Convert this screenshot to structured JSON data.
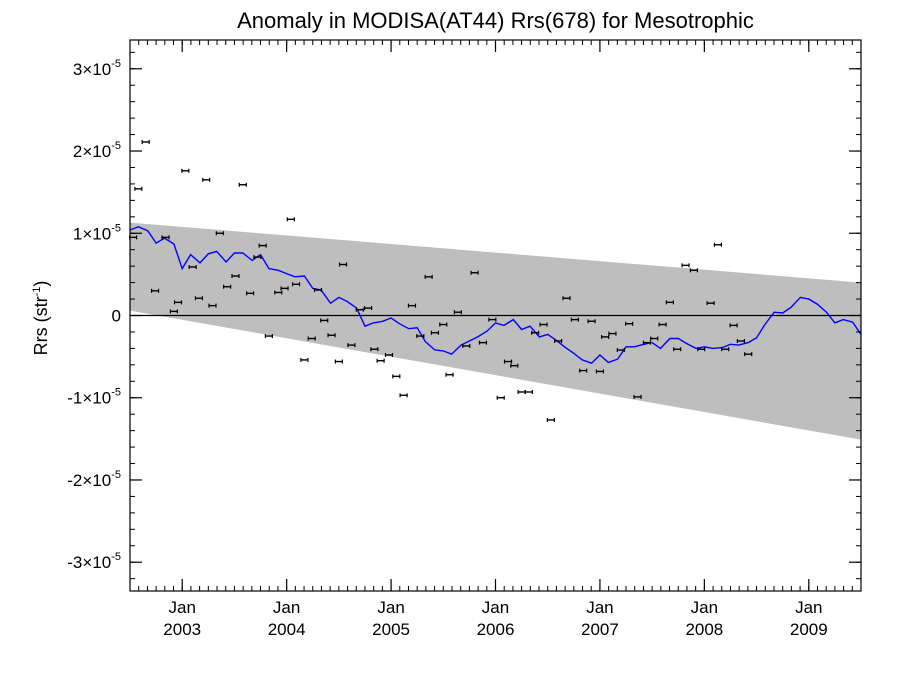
{
  "chart_data": {
    "type": "line",
    "title": "Anomaly in MODISA(AT44) Rrs(678) for Mesotrophic",
    "xlabel": "",
    "ylabel_main": "Rrs (str",
    "ylabel_sup": "-1",
    "ylabel_end": ")",
    "xlim": [
      2002.5,
      2009.5
    ],
    "ylim": [
      -3.35e-05,
      3.35e-05
    ],
    "grid": false,
    "x_ticks": [
      {
        "x": 2003.0,
        "month": "Jan",
        "year": "2003"
      },
      {
        "x": 2004.0,
        "month": "Jan",
        "year": "2004"
      },
      {
        "x": 2005.0,
        "month": "Jan",
        "year": "2005"
      },
      {
        "x": 2006.0,
        "month": "Jan",
        "year": "2006"
      },
      {
        "x": 2007.0,
        "month": "Jan",
        "year": "2007"
      },
      {
        "x": 2008.0,
        "month": "Jan",
        "year": "2008"
      },
      {
        "x": 2009.0,
        "month": "Jan",
        "year": "2009"
      }
    ],
    "y_ticks": [
      {
        "value": 3e-05,
        "mant": "3×10",
        "exp": "-5"
      },
      {
        "value": 2e-05,
        "mant": "2×10",
        "exp": "-5"
      },
      {
        "value": 1e-05,
        "mant": "1×10",
        "exp": "-5"
      },
      {
        "value": 0,
        "mant": "0",
        "exp": ""
      },
      {
        "value": -1e-05,
        "mant": "-1×10",
        "exp": "-5"
      },
      {
        "value": -2e-05,
        "mant": "-2×10",
        "exp": "-5"
      },
      {
        "value": -3e-05,
        "mant": "-3×10",
        "exp": "-5"
      }
    ],
    "band": {
      "upper": [
        [
          2002.5,
          1.13e-05
        ],
        [
          2009.5,
          4e-06
        ]
      ],
      "lower": [
        [
          2002.5,
          6e-07
        ],
        [
          2009.5,
          -1.51e-05
        ]
      ],
      "color": "#bebebe"
    },
    "zero_line": 0,
    "running_mean": {
      "color": "#0000ff",
      "points": [
        [
          2002.5,
          1.04e-05
        ],
        [
          2002.58,
          1.08e-05
        ],
        [
          2002.67,
          1.03e-05
        ],
        [
          2002.75,
          8.8e-06
        ],
        [
          2002.83,
          9.4e-06
        ],
        [
          2002.92,
          8.7e-06
        ],
        [
          2003.0,
          5.7e-06
        ],
        [
          2003.08,
          7.4e-06
        ],
        [
          2003.17,
          6.4e-06
        ],
        [
          2003.25,
          7.5e-06
        ],
        [
          2003.33,
          7.8e-06
        ],
        [
          2003.42,
          6.5e-06
        ],
        [
          2003.5,
          7.6e-06
        ],
        [
          2003.58,
          7.6e-06
        ],
        [
          2003.67,
          6.7e-06
        ],
        [
          2003.75,
          7.4e-06
        ],
        [
          2003.83,
          5.7e-06
        ],
        [
          2003.92,
          5.5e-06
        ],
        [
          2004.0,
          5.1e-06
        ],
        [
          2004.08,
          4.7e-06
        ],
        [
          2004.17,
          4.8e-06
        ],
        [
          2004.25,
          3.3e-06
        ],
        [
          2004.33,
          3.1e-06
        ],
        [
          2004.42,
          1.5e-06
        ],
        [
          2004.5,
          2.2e-06
        ],
        [
          2004.58,
          1.7e-06
        ],
        [
          2004.67,
          9e-07
        ],
        [
          2004.75,
          -1.3e-06
        ],
        [
          2004.83,
          -9e-07
        ],
        [
          2004.92,
          -7e-07
        ],
        [
          2005.0,
          -3e-07
        ],
        [
          2005.08,
          -1e-06
        ],
        [
          2005.17,
          -1.6e-06
        ],
        [
          2005.25,
          -1.5e-06
        ],
        [
          2005.33,
          -3.2e-06
        ],
        [
          2005.42,
          -4.2e-06
        ],
        [
          2005.5,
          -4.3e-06
        ],
        [
          2005.58,
          -4.7e-06
        ],
        [
          2005.67,
          -3.6e-06
        ],
        [
          2005.75,
          -3.1e-06
        ],
        [
          2005.83,
          -2.6e-06
        ],
        [
          2005.92,
          -1.9e-06
        ],
        [
          2006.0,
          -9e-07
        ],
        [
          2006.08,
          -1.2e-06
        ],
        [
          2006.17,
          -5e-07
        ],
        [
          2006.25,
          -1.7e-06
        ],
        [
          2006.33,
          -1.3e-06
        ],
        [
          2006.42,
          -2.6e-06
        ],
        [
          2006.5,
          -2.3e-06
        ],
        [
          2006.58,
          -3e-06
        ],
        [
          2006.67,
          -3.9e-06
        ],
        [
          2006.75,
          -4.6e-06
        ],
        [
          2006.83,
          -5.4e-06
        ],
        [
          2006.92,
          -5.8e-06
        ],
        [
          2007.0,
          -4.8e-06
        ],
        [
          2007.08,
          -5.7e-06
        ],
        [
          2007.17,
          -5.3e-06
        ],
        [
          2007.25,
          -3.8e-06
        ],
        [
          2007.33,
          -3.8e-06
        ],
        [
          2007.42,
          -3.5e-06
        ],
        [
          2007.5,
          -3.3e-06
        ],
        [
          2007.58,
          -4e-06
        ],
        [
          2007.67,
          -2.8e-06
        ],
        [
          2007.75,
          -2.8e-06
        ],
        [
          2007.83,
          -3.4e-06
        ],
        [
          2007.92,
          -4e-06
        ],
        [
          2008.0,
          -3.8e-06
        ],
        [
          2008.08,
          -4e-06
        ],
        [
          2008.17,
          -3.9e-06
        ],
        [
          2008.25,
          -3.5e-06
        ],
        [
          2008.33,
          -3.6e-06
        ],
        [
          2008.42,
          -3.3e-06
        ],
        [
          2008.5,
          -2.7e-06
        ],
        [
          2008.58,
          -1.1e-06
        ],
        [
          2008.67,
          4e-07
        ],
        [
          2008.75,
          3e-07
        ],
        [
          2008.83,
          1e-06
        ],
        [
          2008.92,
          2.2e-06
        ],
        [
          2009.0,
          2e-06
        ],
        [
          2009.08,
          1.4e-06
        ],
        [
          2009.17,
          4e-07
        ],
        [
          2009.25,
          -9e-07
        ],
        [
          2009.33,
          -5e-07
        ],
        [
          2009.42,
          -8e-07
        ],
        [
          2009.5,
          -2.3e-06
        ]
      ]
    },
    "monthly_points": {
      "color": "#000000",
      "points": [
        [
          2002.53,
          9.5e-06
        ],
        [
          2002.58,
          1.54e-05
        ],
        [
          2002.65,
          2.11e-05
        ],
        [
          2002.74,
          3e-06
        ],
        [
          2002.84,
          9.5e-06
        ],
        [
          2002.92,
          5e-07
        ],
        [
          2002.96,
          1.6e-06
        ],
        [
          2003.03,
          1.76e-05
        ],
        [
          2003.1,
          5.9e-06
        ],
        [
          2003.16,
          2.1e-06
        ],
        [
          2003.23,
          1.65e-05
        ],
        [
          2003.29,
          1.2e-06
        ],
        [
          2003.36,
          1e-05
        ],
        [
          2003.43,
          3.5e-06
        ],
        [
          2003.51,
          4.8e-06
        ],
        [
          2003.58,
          1.59e-05
        ],
        [
          2003.65,
          2.7e-06
        ],
        [
          2003.72,
          7.1e-06
        ],
        [
          2003.77,
          8.5e-06
        ],
        [
          2003.83,
          -2.5e-06
        ],
        [
          2003.92,
          2.8e-06
        ],
        [
          2003.98,
          3.3e-06
        ],
        [
          2004.04,
          1.17e-05
        ],
        [
          2004.09,
          3.8e-06
        ],
        [
          2004.17,
          -5.4e-06
        ],
        [
          2004.24,
          -2.8e-06
        ],
        [
          2004.3,
          3.1e-06
        ],
        [
          2004.36,
          -6e-07
        ],
        [
          2004.43,
          -2.4e-06
        ],
        [
          2004.5,
          -5.6e-06
        ],
        [
          2004.54,
          6.2e-06
        ],
        [
          2004.62,
          -3.6e-06
        ],
        [
          2004.7,
          7e-07
        ],
        [
          2004.78,
          9e-07
        ],
        [
          2004.84,
          -4.1e-06
        ],
        [
          2004.9,
          -5.5e-06
        ],
        [
          2004.98,
          -4.8e-06
        ],
        [
          2005.05,
          -7.4e-06
        ],
        [
          2005.12,
          -9.7e-06
        ],
        [
          2005.2,
          1.2e-06
        ],
        [
          2005.28,
          -2.5e-06
        ],
        [
          2005.36,
          4.7e-06
        ],
        [
          2005.42,
          -2.1e-06
        ],
        [
          2005.5,
          -1.1e-06
        ],
        [
          2005.56,
          -7.2e-06
        ],
        [
          2005.64,
          4e-07
        ],
        [
          2005.72,
          -3.7e-06
        ],
        [
          2005.8,
          5.2e-06
        ],
        [
          2005.88,
          -3.3e-06
        ],
        [
          2005.97,
          -5e-07
        ],
        [
          2006.05,
          -1e-05
        ],
        [
          2006.12,
          -5.6e-06
        ],
        [
          2006.18,
          -6.1e-06
        ],
        [
          2006.25,
          -9.3e-06
        ],
        [
          2006.32,
          -9.3e-06
        ],
        [
          2006.38,
          -2.1e-06
        ],
        [
          2006.46,
          -1.1e-06
        ],
        [
          2006.53,
          -1.27e-05
        ],
        [
          2006.6,
          -3.1e-06
        ],
        [
          2006.68,
          2.1e-06
        ],
        [
          2006.76,
          -5e-07
        ],
        [
          2006.84,
          -6.7e-06
        ],
        [
          2006.92,
          -7e-07
        ],
        [
          2007.0,
          -6.8e-06
        ],
        [
          2007.05,
          -2.6e-06
        ],
        [
          2007.12,
          -2.2e-06
        ],
        [
          2007.2,
          -4.2e-06
        ],
        [
          2007.28,
          -1e-06
        ],
        [
          2007.36,
          -9.9e-06
        ],
        [
          2007.45,
          -3.3e-06
        ],
        [
          2007.52,
          -2.8e-06
        ],
        [
          2007.6,
          -1.1e-06
        ],
        [
          2007.67,
          1.6e-06
        ],
        [
          2007.74,
          -4.1e-06
        ],
        [
          2007.82,
          6.1e-06
        ],
        [
          2007.9,
          5.5e-06
        ],
        [
          2007.97,
          -4.1e-06
        ],
        [
          2008.06,
          1.5e-06
        ],
        [
          2008.13,
          8.6e-06
        ],
        [
          2008.2,
          -4.1e-06
        ],
        [
          2008.28,
          -1.2e-06
        ],
        [
          2008.35,
          -3.1e-06
        ],
        [
          2008.42,
          -4.7e-06
        ]
      ]
    }
  }
}
